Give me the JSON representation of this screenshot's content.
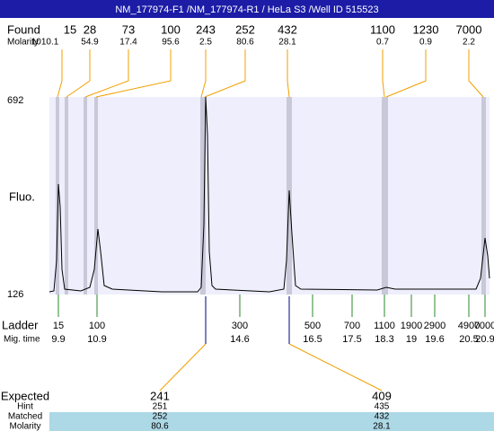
{
  "header": {
    "title": "NM_177974-F1 /NM_177974-R1 / HeLa S3 /Well ID 515523"
  },
  "found": {
    "label": "Found",
    "values": [
      "15",
      "28",
      "73",
      "100",
      "243",
      "252",
      "432",
      "1100",
      "1230",
      "7000"
    ],
    "molarity_label": "Molarity",
    "molarity": [
      "1010.1",
      "54.9",
      "17.4",
      "95.6",
      "2.5",
      "80.6",
      "28.1",
      "0.7",
      "0.9",
      "2.2"
    ]
  },
  "plot": {
    "y_top": "692",
    "y_bottom": "126",
    "y_label": "Fluo."
  },
  "ladder": {
    "label": "Ladder",
    "values": [
      "15",
      "100",
      "300",
      "500",
      "700",
      "1100",
      "1900",
      "2900",
      "4900",
      "7000"
    ],
    "time_label": "Mig. time",
    "times": [
      "9.9",
      "10.9",
      "14.6",
      "16.5",
      "17.5",
      "18.3",
      "19",
      "19.6",
      "20.5",
      "20.9"
    ]
  },
  "expected": {
    "labels": [
      "Expected",
      "Hint",
      "Matched",
      "Molarity"
    ],
    "columns": [
      [
        "241",
        "251",
        "252",
        "80.6"
      ],
      [
        "409",
        "435",
        "432",
        "28.1"
      ]
    ]
  }
}
